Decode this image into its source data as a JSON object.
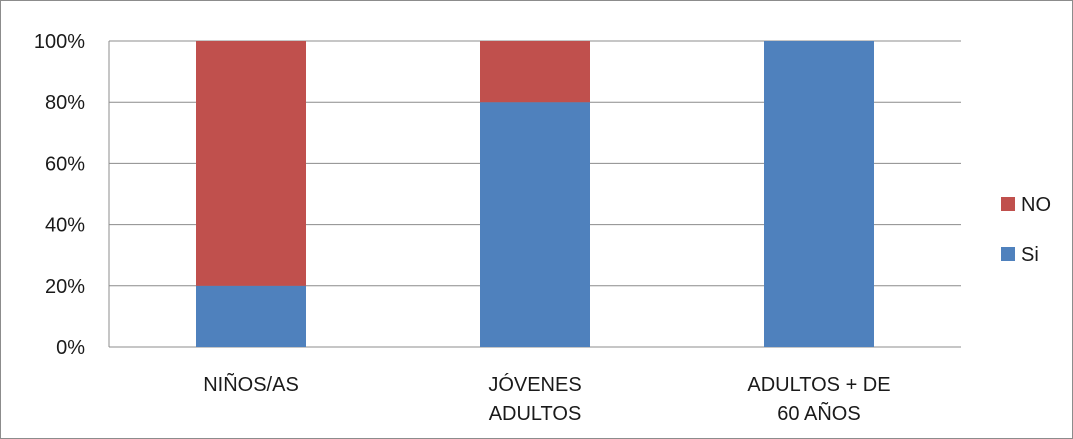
{
  "chart_data": {
    "type": "bar",
    "stacked": true,
    "percent": true,
    "categories": [
      [
        "NIÑOS/AS"
      ],
      [
        "JÓVENES",
        "ADULTOS"
      ],
      [
        "ADULTOS + DE",
        "60 AÑOS"
      ]
    ],
    "series": [
      {
        "name": "Si",
        "values": [
          20,
          80,
          100
        ],
        "color": "#4f81bd"
      },
      {
        "name": "NO",
        "values": [
          80,
          20,
          0
        ],
        "color": "#c0504d"
      }
    ],
    "yticks": [
      "0%",
      "20%",
      "40%",
      "60%",
      "80%",
      "100%"
    ],
    "ylim": [
      0,
      100
    ],
    "grid": true,
    "legend": {
      "position": "right",
      "order": [
        "NO",
        "Si"
      ]
    },
    "title": "",
    "xlabel": "",
    "ylabel": ""
  }
}
